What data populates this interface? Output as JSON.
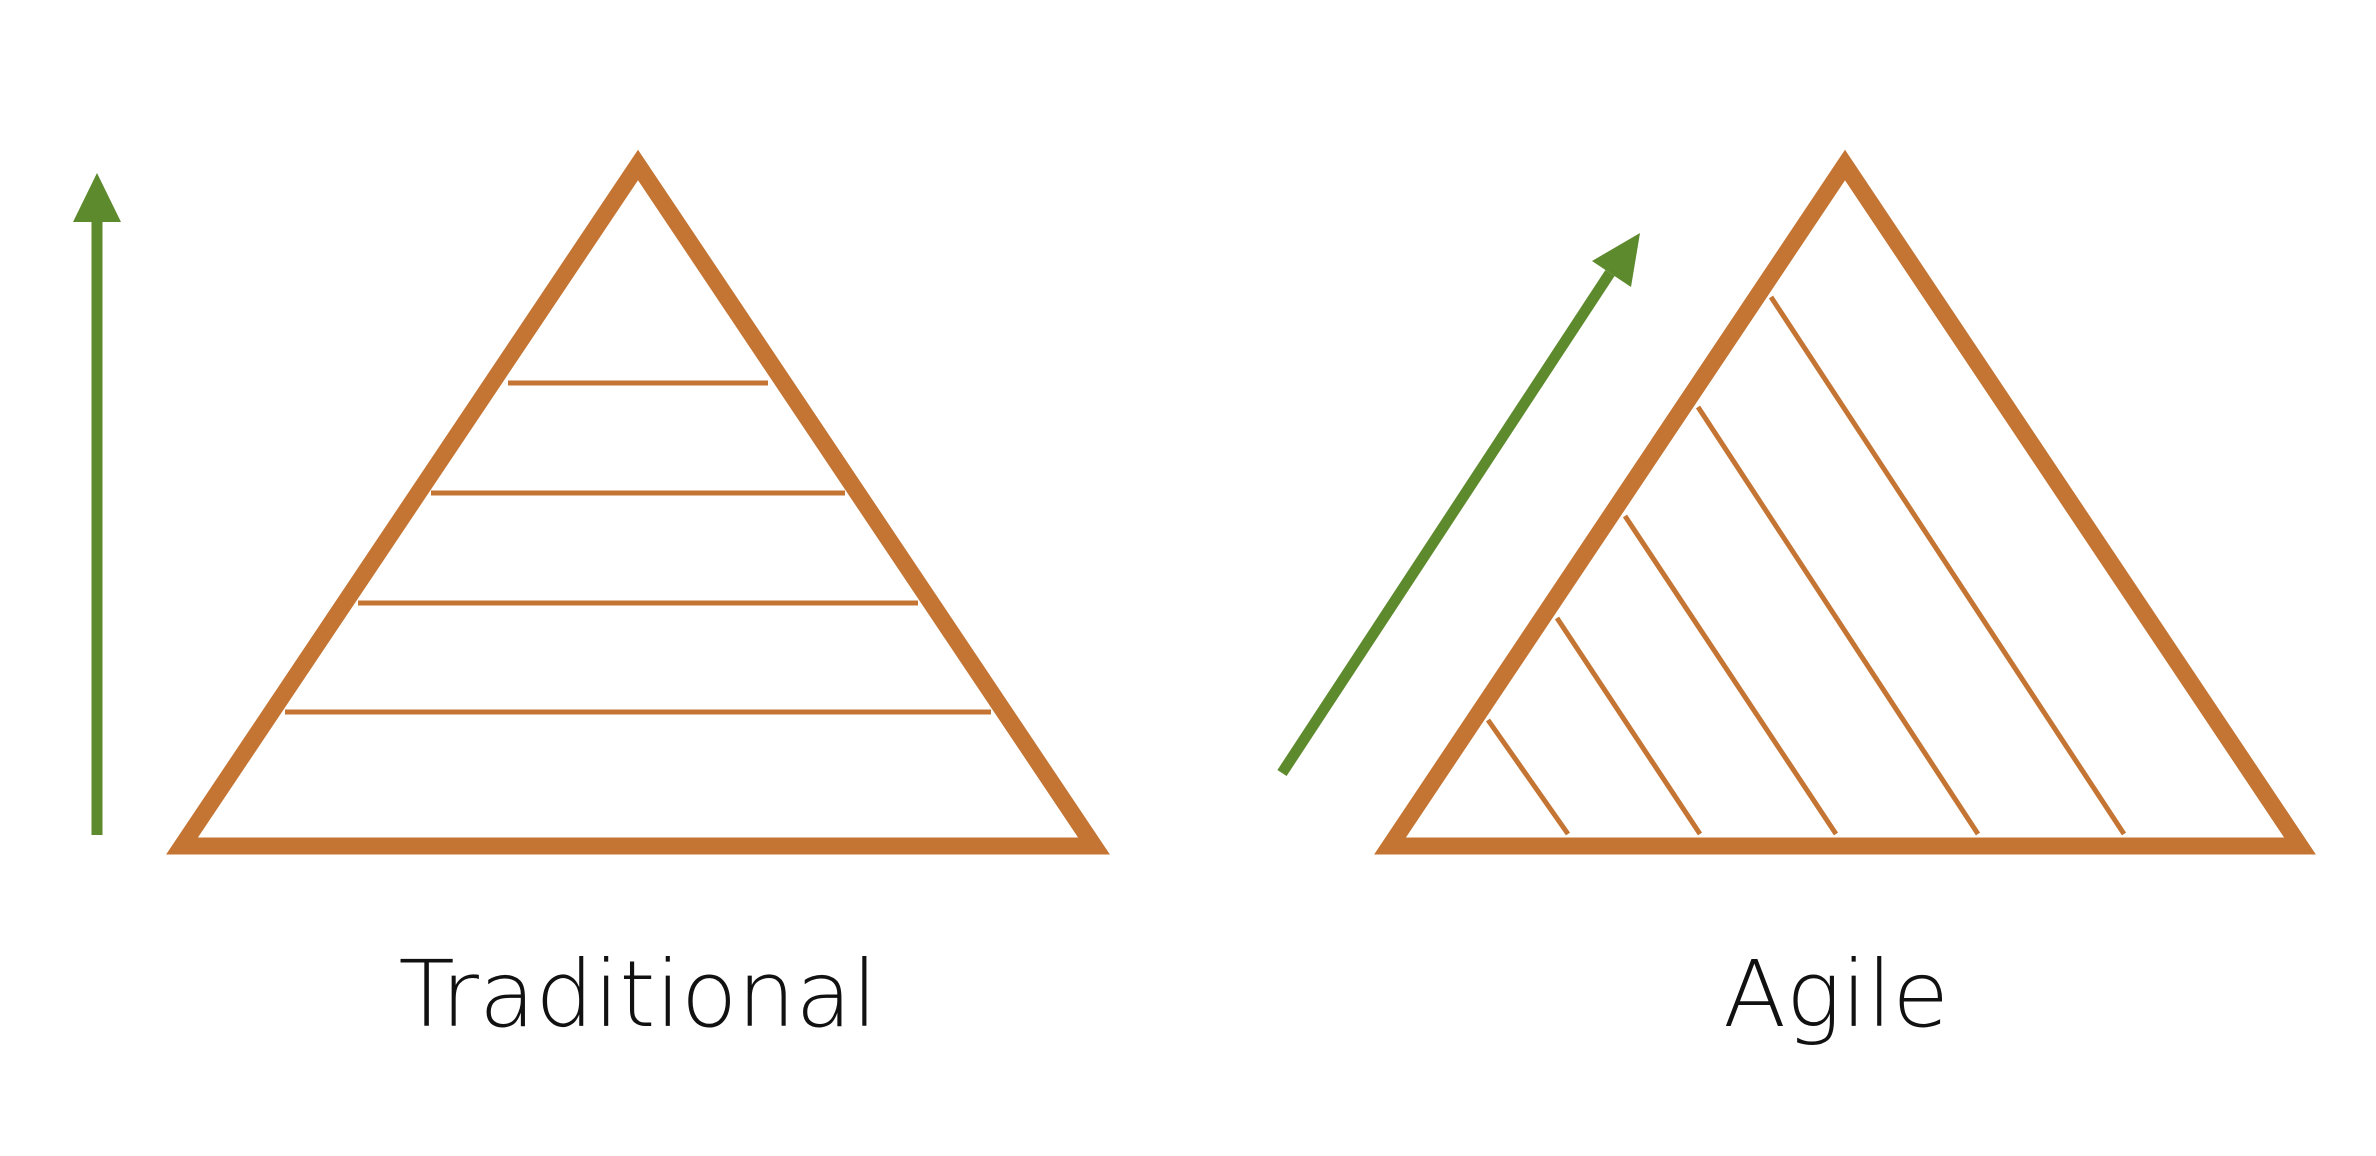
{
  "colors": {
    "pyramid": "#C47433",
    "arrow": "#5E8A2E",
    "text": "#111111",
    "background": "#FFFFFF"
  },
  "traditional": {
    "label": "Traditional",
    "layers": 5,
    "division": "horizontal",
    "arrow_direction": "vertical"
  },
  "agile": {
    "label": "Agile",
    "layers": 6,
    "division": "diagonal",
    "arrow_direction": "diagonal"
  }
}
